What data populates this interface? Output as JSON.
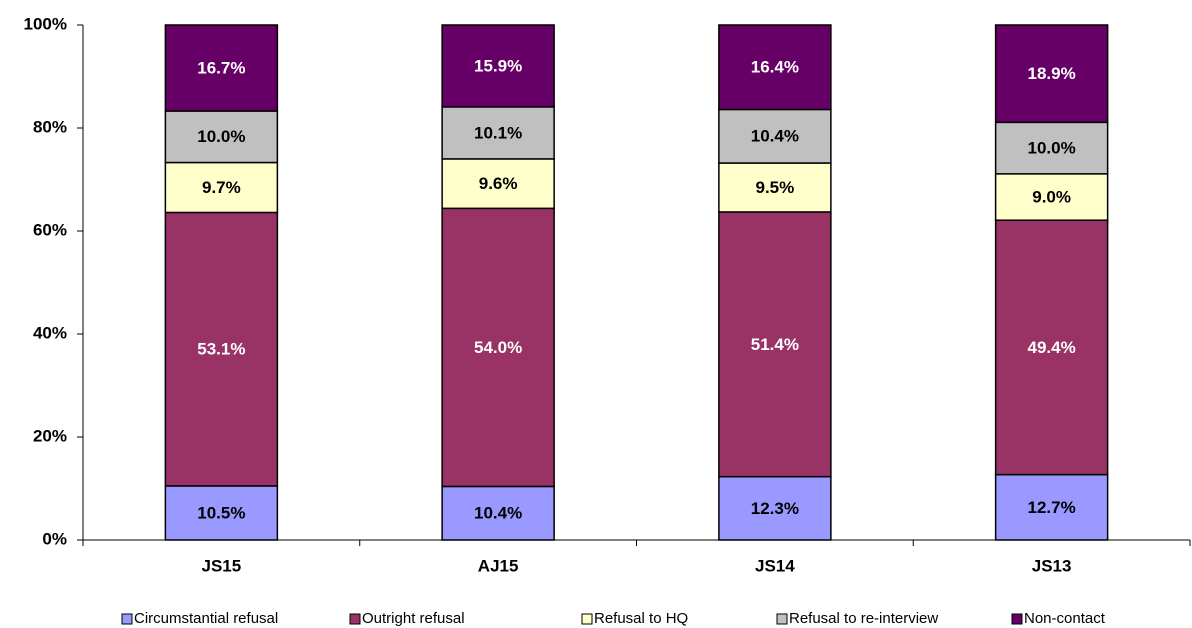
{
  "chart_data": {
    "type": "stacked_bar",
    "categories": [
      "JS15",
      "AJ15",
      "JS14",
      "JS13"
    ],
    "series": [
      {
        "name": "Circumstantial refusal",
        "color": "#9999ff",
        "values": [
          10.5,
          10.4,
          12.3,
          12.7
        ],
        "value_labels": [
          "10.5%",
          "10.4%",
          "12.3%",
          "12.7%"
        ]
      },
      {
        "name": "Outright refusal",
        "color": "#993366",
        "values": [
          53.1,
          54.0,
          51.4,
          49.4
        ],
        "value_labels": [
          "53.1%",
          "54.0%",
          "51.4%",
          "49.4%"
        ]
      },
      {
        "name": "Refusal to HQ",
        "color": "#ffffcc",
        "values": [
          9.7,
          9.6,
          9.5,
          9.0
        ],
        "value_labels": [
          "9.7%",
          "9.6%",
          "9.5%",
          "9.0%"
        ]
      },
      {
        "name": "Refusal to re-interview",
        "color": "#c0c0c0",
        "values": [
          10.0,
          10.1,
          10.4,
          10.0
        ],
        "value_labels": [
          "10.0%",
          "10.1%",
          "10.4%",
          "10.0%"
        ]
      },
      {
        "name": "Non-contact",
        "color": "#660066",
        "values": [
          16.7,
          15.9,
          16.4,
          18.9
        ],
        "value_labels": [
          "16.7%",
          "15.9%",
          "16.4%",
          "18.9%"
        ]
      }
    ],
    "ylim": [
      0,
      100
    ],
    "yticks": [
      {
        "value": 0,
        "label": "0%"
      },
      {
        "value": 20,
        "label": "20%"
      },
      {
        "value": 40,
        "label": "40%"
      },
      {
        "value": 60,
        "label": "60%"
      },
      {
        "value": 80,
        "label": "80%"
      },
      {
        "value": 100,
        "label": "100%"
      }
    ],
    "grid": false,
    "legend": "bottom"
  }
}
